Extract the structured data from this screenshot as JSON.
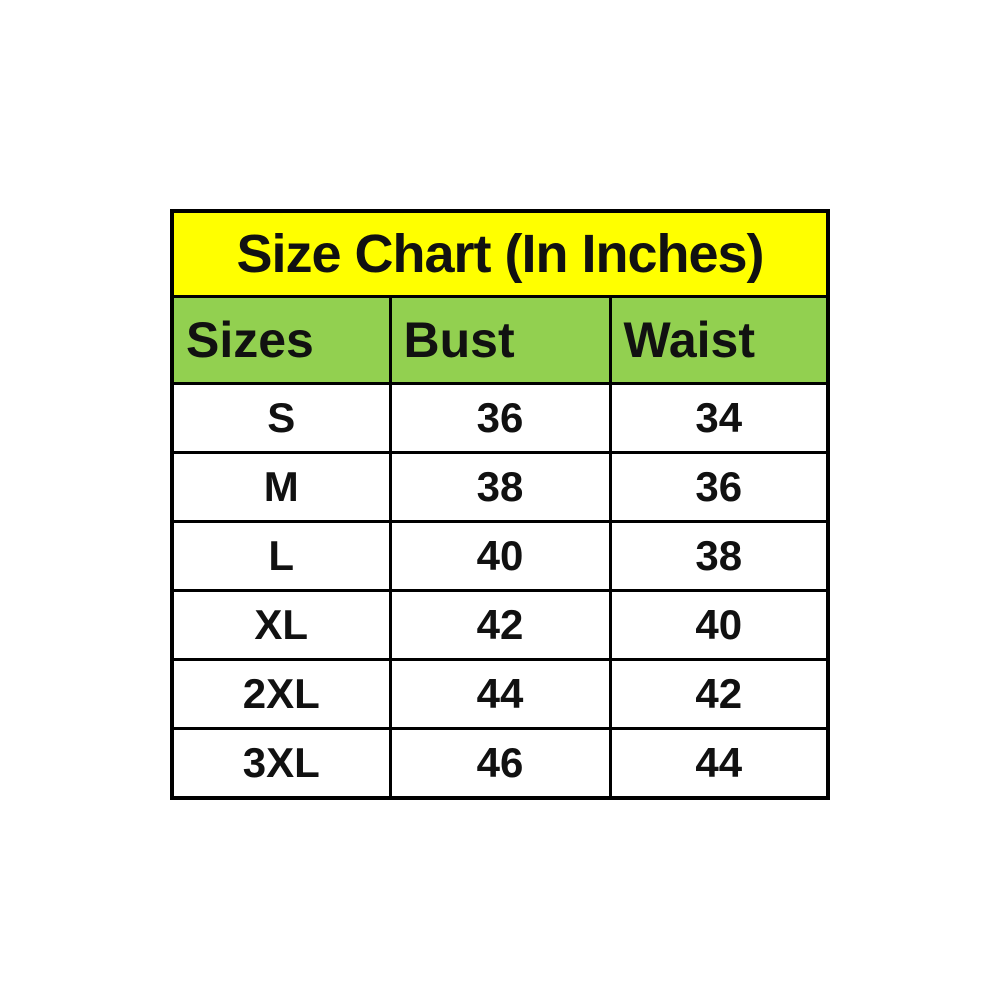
{
  "chart_data": {
    "type": "table",
    "title": "Size Chart (In Inches)",
    "units": "inches",
    "columns": [
      "Sizes",
      "Bust",
      "Waist"
    ],
    "rows": [
      [
        "S",
        36,
        34
      ],
      [
        "M",
        38,
        36
      ],
      [
        "L",
        40,
        38
      ],
      [
        "XL",
        42,
        40
      ],
      [
        "2XL",
        44,
        42
      ],
      [
        "3XL",
        46,
        44
      ]
    ],
    "layout": {
      "title_align": "center",
      "header_align": "left",
      "data_align": "center",
      "grid": true
    },
    "colors": {
      "title_background": "#ffff00",
      "header_background": "#92d050",
      "cell_background": "#ffffff",
      "border": "#000000",
      "text": "#111111",
      "page_background": "#ffffff"
    }
  }
}
